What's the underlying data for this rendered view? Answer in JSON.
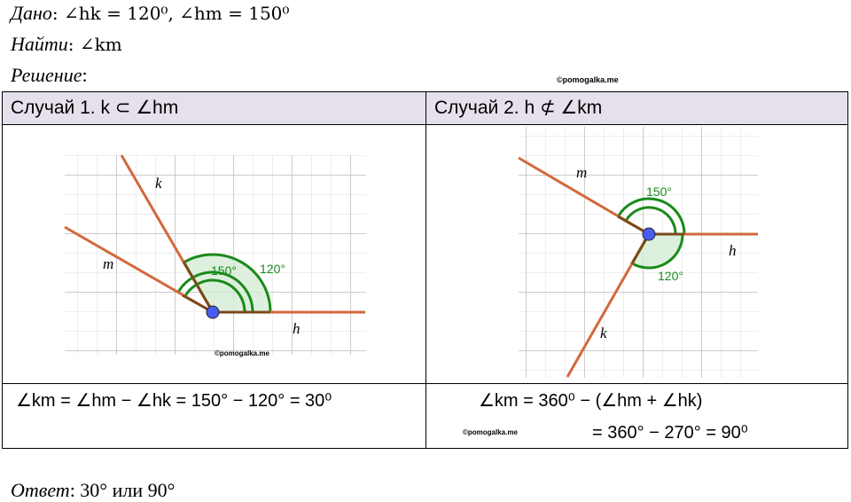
{
  "given": {
    "label": "Дано",
    "text": ": ∠hk = 120⁰,  ∠hm = 150⁰"
  },
  "find": {
    "label": "Найти",
    "text": ": ∠km"
  },
  "solution": {
    "label": "Решение",
    "text": ":"
  },
  "watermark": "©pomogalka.me",
  "table": {
    "headers": [
      "Случай 1. k ⊂ ∠hm",
      "Случай 2. h ⊄ ∠km"
    ],
    "case1": {
      "labels": {
        "k": "k",
        "m": "m",
        "h": "h",
        "a150": "150°",
        "a120": "120°"
      },
      "watermark": "©pomogalka.me",
      "formula": "∠km = ∠hm − ∠hk = 150° − 120° = 30⁰"
    },
    "case2": {
      "labels": {
        "k": "k",
        "m": "m",
        "h": "h",
        "a150": "150°",
        "a120": "120°"
      },
      "watermark": "©pomogalka.me",
      "formula_1": "∠km = 360⁰ − (∠hm + ∠hk)",
      "formula_2": "= 360° − 270° = 90⁰"
    }
  },
  "answer": {
    "label": "Ответ",
    "text": ": 30° или 90°"
  }
}
